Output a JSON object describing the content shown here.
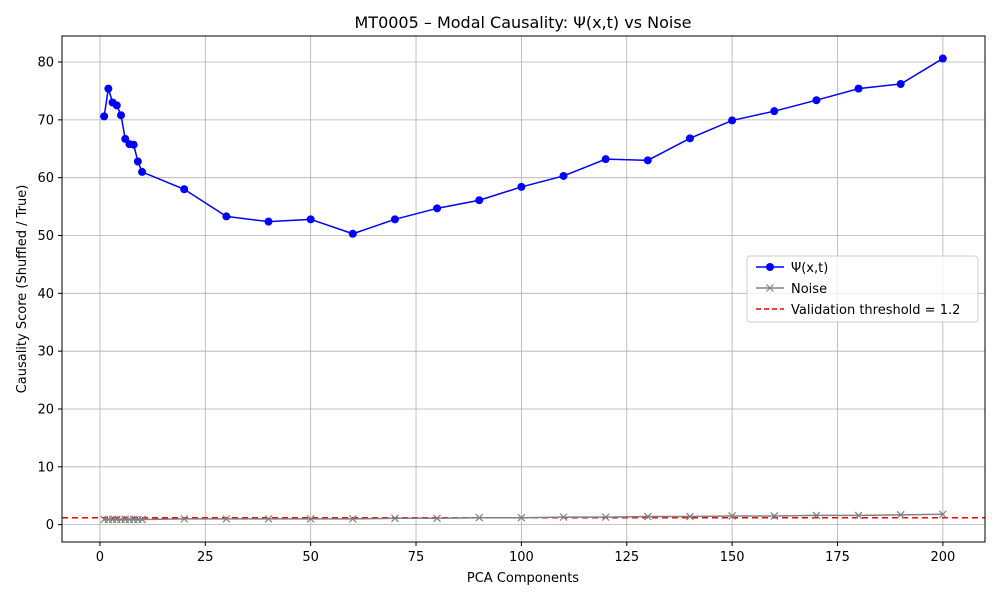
{
  "chart_data": {
    "type": "line",
    "title": "MT0005 – Modal Causality: Ψ(x,t) vs Noise",
    "xlabel": "PCA Components",
    "ylabel": "Causality Score (Shuffled / True)",
    "xlim": [
      -9,
      210
    ],
    "ylim": [
      -3,
      84.5
    ],
    "xticks": [
      0,
      25,
      50,
      75,
      100,
      125,
      150,
      175,
      200
    ],
    "yticks": [
      0,
      10,
      20,
      30,
      40,
      50,
      60,
      70,
      80
    ],
    "grid": true,
    "legend_position": "center-right",
    "x": [
      1,
      2,
      3,
      4,
      5,
      6,
      7,
      8,
      9,
      10,
      20,
      30,
      40,
      50,
      60,
      70,
      80,
      90,
      100,
      110,
      120,
      130,
      140,
      150,
      160,
      170,
      180,
      190,
      200
    ],
    "series": [
      {
        "name": "Ψ(x,t)",
        "color": "#0000ff",
        "marker": "circle",
        "values": [
          70.6,
          75.4,
          73.0,
          72.5,
          70.8,
          66.7,
          65.8,
          65.7,
          62.8,
          61.0,
          58.0,
          53.3,
          52.4,
          52.8,
          50.3,
          52.8,
          54.7,
          56.1,
          58.4,
          60.3,
          63.2,
          63.0,
          66.8,
          69.9,
          71.5,
          73.4,
          75.4,
          76.2,
          80.6
        ]
      },
      {
        "name": "Noise",
        "color": "#808080",
        "marker": "x",
        "values": [
          0.9,
          0.9,
          0.9,
          0.9,
          0.9,
          0.9,
          0.9,
          0.9,
          0.9,
          0.9,
          1.0,
          1.0,
          1.0,
          1.0,
          1.0,
          1.1,
          1.1,
          1.2,
          1.2,
          1.3,
          1.3,
          1.4,
          1.4,
          1.5,
          1.5,
          1.6,
          1.6,
          1.7,
          1.8
        ]
      }
    ],
    "threshold": {
      "name": "Validation threshold = 1.2",
      "value": 1.2,
      "color": "#ff0000",
      "style": "dashed"
    }
  }
}
